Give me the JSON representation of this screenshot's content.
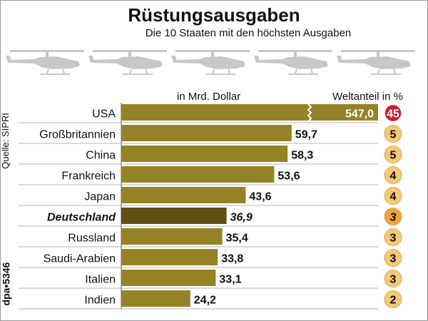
{
  "header": {
    "title": "Rüstungsausgaben",
    "subtitle": "Die 10 Staaten mit den höchsten Ausgaben"
  },
  "labels": {
    "unit": "in Mrd. Dollar",
    "share": "Weltanteil in %",
    "source": "Quelle: SIPRI",
    "credit": "dpa•5346"
  },
  "colors": {
    "bar": "#968226",
    "bar_highlight": "#5e5018",
    "bubble": "#f6c878",
    "bubble_highlight": "#eaa43a",
    "bubble_usa": "#cc1e2e",
    "row_line": "#9b9b9b",
    "helicopter": "#c7c7c7"
  },
  "icons": {
    "decoration": "helicopter-icon",
    "axis_break": "zigzag-break-icon"
  },
  "chart_data": {
    "type": "bar",
    "orientation": "horizontal",
    "categories": [
      "USA",
      "Großbritannien",
      "China",
      "Frankreich",
      "Japan",
      "Deutschland",
      "Russland",
      "Saudi-Arabien",
      "Italien",
      "Indien"
    ],
    "values": [
      547.0,
      59.7,
      58.3,
      53.6,
      43.6,
      36.9,
      35.4,
      33.8,
      33.1,
      24.2
    ],
    "value_labels": [
      "547,0",
      "59,7",
      "58,3",
      "53,6",
      "43,6",
      "36,9",
      "35,4",
      "33,8",
      "33,1",
      "24,2"
    ],
    "world_share_percent": [
      45,
      5,
      5,
      4,
      4,
      3,
      3,
      3,
      3,
      2
    ],
    "highlight": "Deutschland",
    "axis_break": "USA",
    "xlabel": "in Mrd. Dollar",
    "share_label": "Weltanteil in %",
    "grid": false,
    "legend": "none"
  }
}
